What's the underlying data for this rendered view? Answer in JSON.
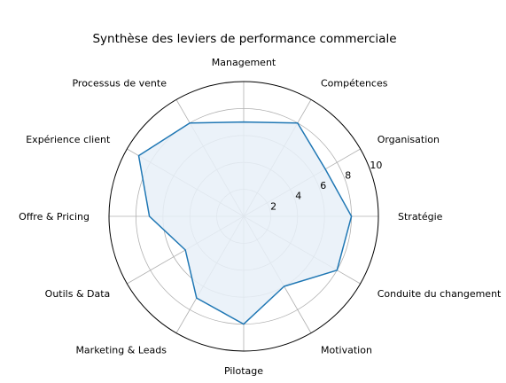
{
  "chart_data": {
    "type": "radar",
    "title": "Synthèse des leviers de performance commerciale",
    "categories": [
      "Stratégie",
      "Organisation",
      "Compétences",
      "Management",
      "Processus de vente",
      "Expérience client",
      "Offre & Pricing",
      "Outils & Data",
      "Marketing & Leads",
      "Pilotage",
      "Motivation",
      "Conduite du changement"
    ],
    "series": [
      {
        "values": [
          8,
          7,
          8,
          7,
          8,
          9,
          7,
          5,
          7,
          8,
          6,
          8
        ]
      }
    ],
    "rlim": [
      0,
      10
    ],
    "rticks": [
      "2",
      "4",
      "6",
      "8",
      "10"
    ],
    "grid": true,
    "colors": {
      "line": "#1f77b4",
      "fill": "#e8f0f8",
      "grid": "#b0b0b0",
      "frame": "#000000"
    }
  }
}
